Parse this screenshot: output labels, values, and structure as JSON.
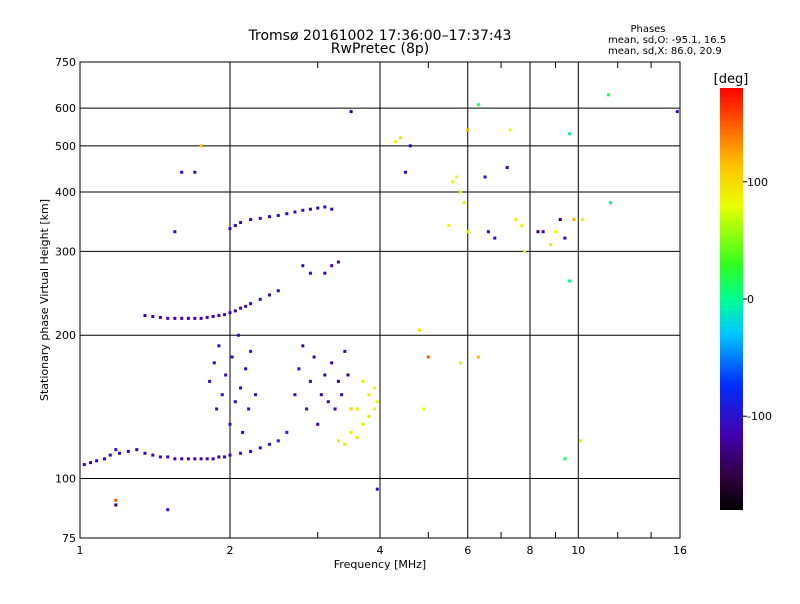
{
  "header": {
    "title_line1": "Tromsø 20161002 17:36:00–17:37:43",
    "title_line2": "RwPretec (8p)"
  },
  "stats": {
    "heading": "Phases",
    "line_o": "mean, sd,O: -95.1, 16.5",
    "line_x": "mean, sd,X:  86.0, 20.9"
  },
  "chart_data": {
    "type": "scatter",
    "xlabel": "Frequency [MHz]",
    "ylabel": "Stationary phase Virtual Height [km]",
    "x_scale": "log",
    "y_scale": "log",
    "xlim": [
      1,
      16
    ],
    "ylim": [
      75,
      750
    ],
    "x_ticks": [
      1,
      2,
      4,
      6,
      8,
      10,
      16
    ],
    "x_tick_labels": [
      "1",
      "2",
      "4",
      "6",
      "8",
      "10",
      "16"
    ],
    "x_minor_ticks": [
      3,
      5,
      7,
      9,
      12,
      14
    ],
    "y_ticks": [
      75,
      100,
      200,
      300,
      400,
      500,
      600,
      750
    ],
    "y_tick_labels": [
      "75",
      "100",
      "200",
      "300",
      "400",
      "500",
      "600",
      "750"
    ],
    "grid": true,
    "colorbar": {
      "label": "[deg]",
      "range": [
        -180,
        180
      ],
      "ticks": [
        100,
        0,
        -100
      ],
      "tick_labels": [
        "100",
        "0",
        "-100"
      ]
    },
    "points": [
      [
        1.02,
        107,
        -120
      ],
      [
        1.05,
        108,
        -118
      ],
      [
        1.08,
        109,
        -115
      ],
      [
        1.12,
        110,
        -112
      ],
      [
        1.15,
        112,
        -110
      ],
      [
        1.18,
        115,
        -105
      ],
      [
        1.2,
        113,
        -110
      ],
      [
        1.25,
        114,
        -108
      ],
      [
        1.3,
        115,
        -110
      ],
      [
        1.35,
        113,
        -112
      ],
      [
        1.4,
        112,
        -113
      ],
      [
        1.45,
        111,
        -115
      ],
      [
        1.5,
        111,
        -115
      ],
      [
        1.55,
        110,
        -116
      ],
      [
        1.6,
        110,
        -117
      ],
      [
        1.65,
        110,
        -118
      ],
      [
        1.7,
        110,
        -118
      ],
      [
        1.75,
        110,
        -118
      ],
      [
        1.8,
        110,
        -117
      ],
      [
        1.85,
        110,
        -116
      ],
      [
        1.9,
        111,
        -115
      ],
      [
        1.95,
        111,
        -114
      ],
      [
        2.0,
        112,
        -113
      ],
      [
        2.1,
        113,
        -112
      ],
      [
        2.2,
        114,
        -110
      ],
      [
        2.3,
        116,
        -100
      ],
      [
        2.4,
        118,
        -95
      ],
      [
        2.5,
        120,
        -90
      ],
      [
        2.6,
        125,
        -85
      ],
      [
        1.35,
        220,
        -115
      ],
      [
        1.4,
        219,
        -115
      ],
      [
        1.45,
        218,
        -116
      ],
      [
        1.5,
        217,
        -116
      ],
      [
        1.55,
        217,
        -117
      ],
      [
        1.6,
        217,
        -117
      ],
      [
        1.65,
        217,
        -117
      ],
      [
        1.7,
        217,
        -117
      ],
      [
        1.75,
        217,
        -117
      ],
      [
        1.8,
        218,
        -116
      ],
      [
        1.85,
        219,
        -115
      ],
      [
        1.9,
        220,
        -114
      ],
      [
        1.95,
        221,
        -113
      ],
      [
        2.0,
        223,
        -112
      ],
      [
        2.05,
        225,
        -112
      ],
      [
        2.1,
        228,
        -112
      ],
      [
        2.15,
        230,
        -111
      ],
      [
        2.2,
        233,
        -111
      ],
      [
        2.3,
        238,
        -110
      ],
      [
        2.4,
        243,
        -110
      ],
      [
        2.5,
        248,
        -109
      ],
      [
        2.0,
        335,
        -110
      ],
      [
        2.05,
        340,
        -110
      ],
      [
        2.1,
        345,
        -110
      ],
      [
        2.2,
        350,
        -112
      ],
      [
        2.3,
        352,
        -112
      ],
      [
        2.4,
        355,
        -111
      ],
      [
        2.5,
        357,
        -111
      ],
      [
        2.6,
        360,
        -110
      ],
      [
        2.7,
        363,
        -110
      ],
      [
        2.8,
        366,
        -110
      ],
      [
        2.9,
        368,
        -110
      ],
      [
        3.0,
        370,
        -108
      ],
      [
        3.1,
        372,
        -108
      ],
      [
        3.2,
        368,
        -108
      ],
      [
        1.6,
        440,
        -110
      ],
      [
        1.7,
        440,
        -112
      ],
      [
        1.55,
        330,
        -110
      ],
      [
        3.5,
        590,
        -130
      ],
      [
        1.82,
        160,
        -108
      ],
      [
        1.86,
        175,
        -110
      ],
      [
        1.88,
        140,
        -105
      ],
      [
        1.9,
        190,
        -105
      ],
      [
        1.93,
        150,
        -108
      ],
      [
        1.96,
        165,
        -110
      ],
      [
        2.0,
        130,
        -106
      ],
      [
        2.02,
        180,
        -109
      ],
      [
        2.05,
        145,
        -105
      ],
      [
        2.08,
        200,
        -112
      ],
      [
        2.1,
        155,
        -108
      ],
      [
        2.12,
        125,
        -106
      ],
      [
        2.15,
        170,
        -110
      ],
      [
        2.18,
        140,
        -104
      ],
      [
        2.2,
        185,
        -108
      ],
      [
        2.25,
        150,
        -106
      ],
      [
        2.7,
        150,
        -104
      ],
      [
        2.75,
        170,
        -112
      ],
      [
        2.8,
        190,
        -120
      ],
      [
        2.85,
        140,
        -106
      ],
      [
        2.9,
        160,
        -114
      ],
      [
        2.95,
        180,
        -118
      ],
      [
        3.0,
        130,
        -116
      ],
      [
        3.05,
        150,
        -125
      ],
      [
        3.1,
        165,
        -130
      ],
      [
        3.15,
        145,
        -120
      ],
      [
        3.2,
        175,
        -128
      ],
      [
        3.25,
        140,
        -122
      ],
      [
        3.3,
        160,
        -130
      ],
      [
        3.35,
        150,
        -125
      ],
      [
        3.4,
        185,
        -118
      ],
      [
        3.45,
        165,
        -128
      ],
      [
        3.5,
        140,
        -125
      ],
      [
        3.1,
        270,
        -120
      ],
      [
        3.2,
        280,
        -118
      ],
      [
        3.3,
        285,
        -115
      ],
      [
        2.9,
        270,
        -112
      ],
      [
        2.8,
        280,
        -110
      ],
      [
        3.3,
        120,
        90
      ],
      [
        3.4,
        118,
        92
      ],
      [
        3.5,
        125,
        88
      ],
      [
        3.6,
        122,
        95
      ],
      [
        3.7,
        130,
        90
      ],
      [
        3.8,
        135,
        92
      ],
      [
        3.9,
        140,
        85
      ],
      [
        3.95,
        145,
        80
      ],
      [
        3.6,
        140,
        92
      ],
      [
        3.8,
        150,
        88
      ],
      [
        3.7,
        160,
        90
      ],
      [
        3.9,
        155,
        85
      ],
      [
        3.5,
        140,
        95
      ],
      [
        4.3,
        510,
        90
      ],
      [
        4.4,
        520,
        95
      ],
      [
        4.6,
        500,
        -115
      ],
      [
        4.5,
        440,
        -110
      ],
      [
        4.8,
        205,
        95
      ],
      [
        4.9,
        140,
        80
      ],
      [
        5.5,
        340,
        85
      ],
      [
        5.6,
        420,
        88
      ],
      [
        5.7,
        430,
        82
      ],
      [
        5.8,
        400,
        90
      ],
      [
        5.9,
        380,
        85
      ],
      [
        6.0,
        540,
        120
      ],
      [
        6.0,
        330,
        88
      ],
      [
        5.8,
        175,
        70
      ],
      [
        6.3,
        610,
        10
      ],
      [
        6.5,
        430,
        -110
      ],
      [
        6.6,
        330,
        -115
      ],
      [
        6.8,
        320,
        -110
      ],
      [
        7.2,
        450,
        -118
      ],
      [
        7.3,
        540,
        80
      ],
      [
        7.5,
        350,
        90
      ],
      [
        7.7,
        340,
        85
      ],
      [
        7.8,
        300,
        88
      ],
      [
        8.3,
        330,
        -140
      ],
      [
        8.5,
        330,
        -120
      ],
      [
        8.8,
        310,
        90
      ],
      [
        9.0,
        330,
        85
      ],
      [
        9.2,
        350,
        -140
      ],
      [
        9.4,
        320,
        -120
      ],
      [
        9.6,
        260,
        0
      ],
      [
        9.6,
        530,
        0
      ],
      [
        9.8,
        350,
        120
      ],
      [
        10.2,
        350,
        90
      ],
      [
        10.1,
        120,
        90
      ],
      [
        11.5,
        640,
        10
      ],
      [
        11.6,
        380,
        5
      ],
      [
        15.8,
        590,
        -120
      ],
      [
        1.18,
        90,
        150
      ],
      [
        1.18,
        88,
        -140
      ],
      [
        1.5,
        86,
        -100
      ],
      [
        1.75,
        500,
        110
      ],
      [
        3.95,
        95,
        -110
      ],
      [
        9.4,
        110,
        10
      ],
      [
        5.0,
        180,
        150
      ],
      [
        6.3,
        180,
        120
      ]
    ]
  }
}
